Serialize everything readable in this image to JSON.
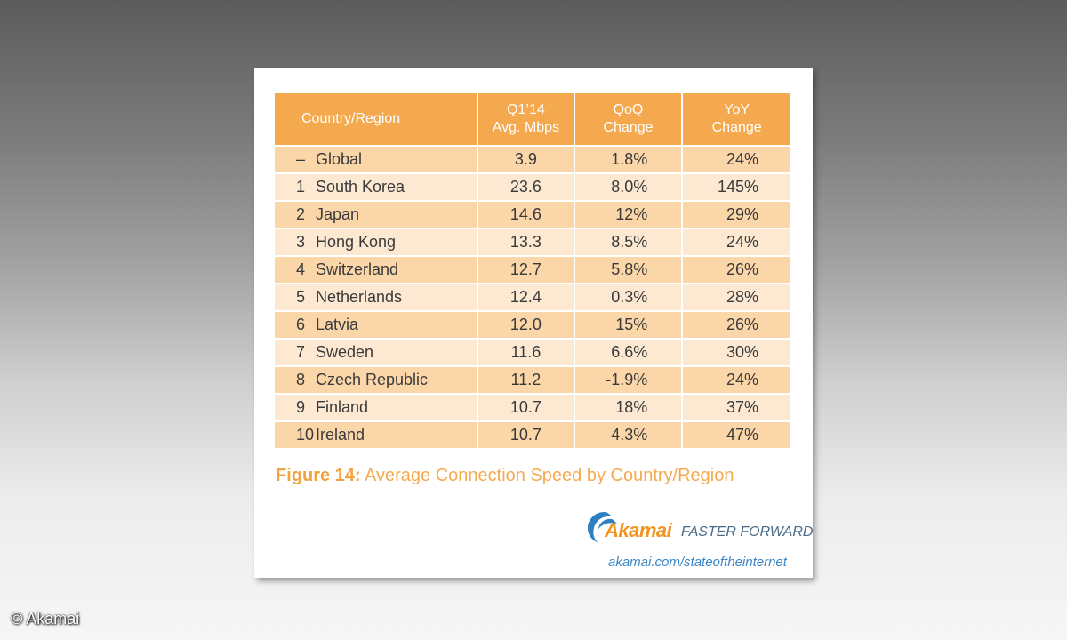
{
  "table": {
    "headers": {
      "country": "Country/Region",
      "mbps_line1": "Q1’14",
      "mbps_line2": "Avg. Mbps",
      "qoq_line1": "QoQ",
      "qoq_line2": "Change",
      "yoy_line1": "YoY",
      "yoy_line2": "Change"
    },
    "rows": [
      {
        "rank": "–",
        "country": "Global",
        "mbps": "3.9",
        "qoq": "1.8%",
        "yoy": "24%"
      },
      {
        "rank": "1",
        "country": "South Korea",
        "mbps": "23.6",
        "qoq": "8.0%",
        "yoy": "145%"
      },
      {
        "rank": "2",
        "country": "Japan",
        "mbps": "14.6",
        "qoq": "12%",
        "yoy": "29%"
      },
      {
        "rank": "3",
        "country": "Hong Kong",
        "mbps": "13.3",
        "qoq": "8.5%",
        "yoy": "24%"
      },
      {
        "rank": "4",
        "country": "Switzerland",
        "mbps": "12.7",
        "qoq": "5.8%",
        "yoy": "26%"
      },
      {
        "rank": "5",
        "country": "Netherlands",
        "mbps": "12.4",
        "qoq": "0.3%",
        "yoy": "28%"
      },
      {
        "rank": "6",
        "country": "Latvia",
        "mbps": "12.0",
        "qoq": "15%",
        "yoy": "26%"
      },
      {
        "rank": "7",
        "country": "Sweden",
        "mbps": "11.6",
        "qoq": "6.6%",
        "yoy": "30%"
      },
      {
        "rank": "8",
        "country": "Czech Republic",
        "mbps": "11.2",
        "qoq": "-1.9%",
        "yoy": "24%"
      },
      {
        "rank": "9",
        "country": "Finland",
        "mbps": "10.7",
        "qoq": "18%",
        "yoy": "37%"
      },
      {
        "rank": "10",
        "country": "Ireland",
        "mbps": "10.7",
        "qoq": "4.3%",
        "yoy": "47%"
      }
    ]
  },
  "caption": {
    "label": "Figure 14:",
    "text": "Average Connection Speed by Country/Region"
  },
  "brand": {
    "name": "Akamai",
    "tagline": "FASTER FORWARD",
    "url": "akamai.com/stateoftheinternet",
    "logo_icon": "akamai-swoosh-icon"
  },
  "copyright": "© Akamai",
  "colors": {
    "header_orange": "#f5a94e",
    "row_dark": "#fbd6a8",
    "row_light": "#fde9d2",
    "brand_orange": "#f2951f",
    "brand_blue": "#3a86c8"
  }
}
